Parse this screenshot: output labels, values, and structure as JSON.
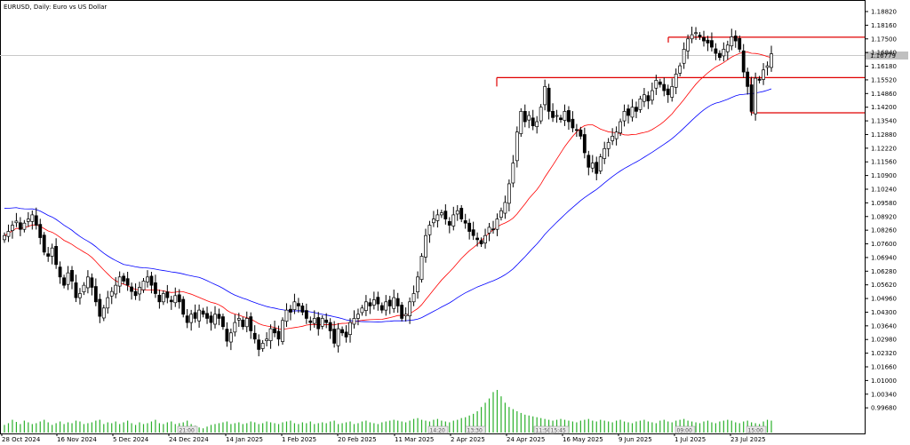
{
  "header": {
    "symbol": "EURUSD",
    "timeframe": "Daily",
    "description": "Euro vs US Dollar",
    "title_text": "EURUSD, Daily:  Euro vs US Dollar"
  },
  "price_tag": "1.16779",
  "colors": {
    "bull": "#ffffff",
    "bear": "#000000",
    "ma_fast": "#ff0000",
    "ma_slow": "#0000ff",
    "level": "#e00000",
    "volume": "#2bb02b",
    "grid_border": "#000000"
  },
  "chart_data": {
    "type": "candlestick",
    "symbol": "EURUSD",
    "timeframe": "Daily",
    "ylim": [
      0.99,
      1.1882
    ],
    "y_ticks": [
      "1.18820",
      "1.18160",
      "1.17500",
      "1.16840",
      "1.16180",
      "1.15520",
      "1.14860",
      "1.14200",
      "1.13540",
      "1.12880",
      "1.12220",
      "1.11560",
      "1.10900",
      "1.10240",
      "1.09580",
      "1.08920",
      "1.08260",
      "1.07600",
      "1.06940",
      "1.06280",
      "1.05620",
      "1.04960",
      "1.04300",
      "1.03640",
      "1.02980",
      "1.02320",
      "1.01660",
      "1.01000",
      "1.00340",
      "0.99680"
    ],
    "x_labels": [
      "28 Oct 2024",
      "16 Nov 2024",
      "5 Dec 2024",
      "24 Dec 2024",
      "14 Jan 2025",
      "1 Feb 2025",
      "20 Feb 2025",
      "11 Mar 2025",
      "2 Apr 2025",
      "24 Apr 2025",
      "16 May 2025",
      "9 Jun 2025",
      "1 Jul 2025",
      "23 Jul 2025"
    ],
    "time_markers": [
      "21:00",
      "14:20",
      "13:30",
      "11:50",
      "15:45",
      "09:00",
      "15:00"
    ],
    "current_price": 1.16779,
    "levels": [
      {
        "price": 1.1758
      },
      {
        "price": 1.1563
      },
      {
        "price": 1.1393
      }
    ],
    "closes": [
      1.08,
      1.082,
      1.085,
      1.087,
      1.083,
      1.086,
      1.088,
      1.09,
      1.085,
      1.079,
      1.072,
      1.07,
      1.074,
      1.066,
      1.06,
      1.056,
      1.062,
      1.058,
      1.05,
      1.052,
      1.056,
      1.06,
      1.055,
      1.048,
      1.041,
      1.045,
      1.05,
      1.053,
      1.056,
      1.06,
      1.058,
      1.056,
      1.053,
      1.051,
      1.055,
      1.058,
      1.06,
      1.056,
      1.052,
      1.048,
      1.052,
      1.05,
      1.048,
      1.051,
      1.048,
      1.042,
      1.038,
      1.042,
      1.04,
      1.044,
      1.042,
      1.04,
      1.038,
      1.042,
      1.04,
      1.036,
      1.029,
      1.033,
      1.038,
      1.04,
      1.036,
      1.04,
      1.034,
      1.03,
      1.025,
      1.028,
      1.03,
      1.035,
      1.033,
      1.03,
      1.039,
      1.044,
      1.043,
      1.048,
      1.046,
      1.043,
      1.04,
      1.038,
      1.04,
      1.035,
      1.04,
      1.038,
      1.034,
      1.028,
      1.035,
      1.033,
      1.031,
      1.038,
      1.04,
      1.042,
      1.045,
      1.048,
      1.046,
      1.049,
      1.047,
      1.044,
      1.048,
      1.046,
      1.05,
      1.046,
      1.04,
      1.042,
      1.048,
      1.052,
      1.06,
      1.07,
      1.08,
      1.085,
      1.088,
      1.09,
      1.091,
      1.088,
      1.085,
      1.09,
      1.092,
      1.088,
      1.086,
      1.082,
      1.08,
      1.078,
      1.076,
      1.08,
      1.084,
      1.083,
      1.088,
      1.092,
      1.096,
      1.105,
      1.115,
      1.13,
      1.14,
      1.135,
      1.138,
      1.133,
      1.135,
      1.142,
      1.152,
      1.14,
      1.137,
      1.138,
      1.136,
      1.14,
      1.135,
      1.132,
      1.131,
      1.128,
      1.12,
      1.113,
      1.115,
      1.11,
      1.118,
      1.122,
      1.125,
      1.128,
      1.13,
      1.135,
      1.14,
      1.138,
      1.142,
      1.14,
      1.146,
      1.148,
      1.145,
      1.15,
      1.155,
      1.153,
      1.15,
      1.148,
      1.152,
      1.158,
      1.162,
      1.17,
      1.175,
      1.177,
      1.178,
      1.176,
      1.174,
      1.173,
      1.171,
      1.168,
      1.166,
      1.17,
      1.172,
      1.176,
      1.174,
      1.17,
      1.159,
      1.152,
      1.14,
      1.156,
      1.155,
      1.16,
      1.162,
      1.1678
    ],
    "ma_fast": {
      "period": 20,
      "type": "SMA"
    },
    "ma_slow": {
      "period": 50,
      "type": "SMA"
    },
    "volume_values": [
      0.18,
      0.22,
      0.3,
      0.25,
      0.2,
      0.28,
      0.24,
      0.2,
      0.22,
      0.26,
      0.3,
      0.24,
      0.18,
      0.22,
      0.26,
      0.2,
      0.24,
      0.22,
      0.28,
      0.26,
      0.2,
      0.22,
      0.24,
      0.28,
      0.3,
      0.2,
      0.24,
      0.22,
      0.26,
      0.2,
      0.24,
      0.28,
      0.22,
      0.18,
      0.24,
      0.2,
      0.22,
      0.26,
      0.3,
      0.22,
      0.2,
      0.24,
      0.26,
      0.2,
      0.22,
      0.24,
      0.28,
      0.2,
      0.16,
      0.12,
      0.1,
      0.14,
      0.18,
      0.2,
      0.22,
      0.24,
      0.26,
      0.2,
      0.22,
      0.24,
      0.2,
      0.22,
      0.26,
      0.24,
      0.2,
      0.22,
      0.26,
      0.24,
      0.22,
      0.2,
      0.24,
      0.26,
      0.28,
      0.22,
      0.2,
      0.24,
      0.22,
      0.26,
      0.2,
      0.22,
      0.24,
      0.22,
      0.26,
      0.28,
      0.2,
      0.22,
      0.24,
      0.26,
      0.2,
      0.22,
      0.26,
      0.28,
      0.24,
      0.22,
      0.2,
      0.24,
      0.26,
      0.28,
      0.3,
      0.28,
      0.26,
      0.24,
      0.28,
      0.32,
      0.34,
      0.3,
      0.28,
      0.26,
      0.3,
      0.32,
      0.28,
      0.26,
      0.24,
      0.28,
      0.3,
      0.34,
      0.36,
      0.4,
      0.44,
      0.5,
      0.6,
      0.7,
      0.8,
      0.95,
      1.0,
      0.85,
      0.7,
      0.6,
      0.55,
      0.5,
      0.46,
      0.42,
      0.4,
      0.38,
      0.36,
      0.34,
      0.32,
      0.3,
      0.28,
      0.3,
      0.32,
      0.3,
      0.28,
      0.26,
      0.24,
      0.28,
      0.3,
      0.32,
      0.28,
      0.26,
      0.3,
      0.28,
      0.26,
      0.24,
      0.28,
      0.3,
      0.26,
      0.24,
      0.22,
      0.26,
      0.28,
      0.3,
      0.26,
      0.24,
      0.22,
      0.28,
      0.3,
      0.26,
      0.24,
      0.28,
      0.3,
      0.32,
      0.28,
      0.26,
      0.24,
      0.22,
      0.26,
      0.28,
      0.24,
      0.22,
      0.26,
      0.28,
      0.3,
      0.28,
      0.24,
      0.22,
      0.26,
      0.28,
      0.24,
      0.22,
      0.2,
      0.26,
      0.3,
      0.28
    ]
  }
}
